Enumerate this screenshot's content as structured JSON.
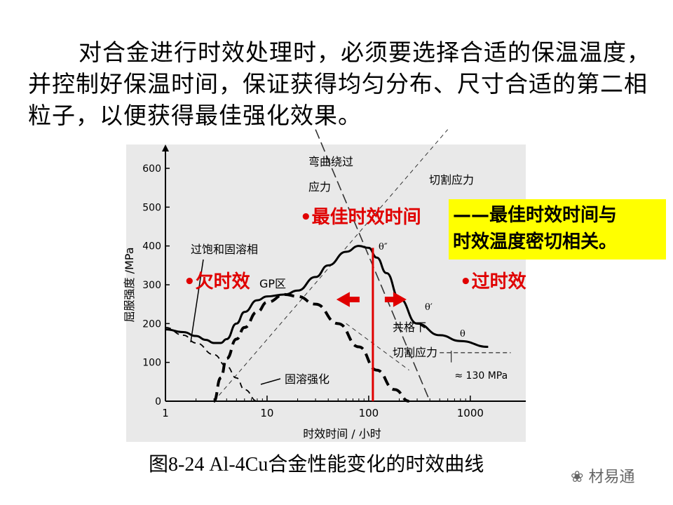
{
  "intro_text": "对合金进行时效处理时，必须要选择合适的保温温度，并控制好保温时间，保证获得均匀分布、尺寸合适的第二相粒子，以便获得最佳强化效果。",
  "caption": "图8-24  Al-4Cu合金性能变化的时效曲线",
  "watermark": "材易通",
  "note": {
    "line1": "——最佳时效时间与",
    "line2": "时效温度密切相关。",
    "bg": "#ffff00"
  },
  "highlights": {
    "best_time": "•最佳时效时间",
    "under_aging": "•欠时效",
    "over_aging": "•过时效",
    "gp_zone": "GP区",
    "color": "#e00000"
  },
  "chart_data": {
    "type": "line",
    "xscale": "log",
    "xlim": [
      1,
      3000
    ],
    "ylim": [
      0,
      600
    ],
    "xticks": [
      1,
      10,
      100,
      1000
    ],
    "xtick_labels": [
      "1",
      "10",
      "100",
      "1000"
    ],
    "yticks": [
      0,
      100,
      200,
      300,
      400,
      500,
      600
    ],
    "ytick_labels": [
      "0",
      "100",
      "200",
      "300",
      "400",
      "500",
      "600"
    ],
    "xlabel": "时效时间  /  小时",
    "ylabel": "屈服强度  /MPa",
    "series": [
      {
        "name": "",
        "style": "solid",
        "x": [
          1,
          1.5,
          2,
          2.5,
          3,
          3.5,
          4,
          5,
          6,
          8,
          10,
          15,
          20,
          30,
          40,
          60,
          80,
          100,
          120,
          150,
          200,
          300,
          500,
          800,
          1500
        ],
        "y": [
          185,
          178,
          168,
          158,
          150,
          150,
          160,
          200,
          230,
          260,
          270,
          275,
          285,
          320,
          350,
          385,
          400,
          395,
          370,
          330,
          265,
          200,
          170,
          155,
          140
        ]
      },
      {
        "name": "",
        "style": "dashed",
        "x": [
          3,
          3.5,
          4,
          5,
          6,
          8,
          10,
          15,
          20,
          30,
          50,
          80,
          120,
          180,
          250
        ],
        "y": [
          0,
          60,
          110,
          160,
          190,
          230,
          255,
          275,
          270,
          250,
          200,
          140,
          80,
          30,
          0
        ]
      },
      {
        "name": "",
        "style": "dashed",
        "x": [
          1,
          1.5,
          2,
          3,
          4,
          5,
          6,
          8
        ],
        "y": [
          190,
          170,
          150,
          120,
          90,
          60,
          30,
          0
        ]
      }
    ],
    "guide_lines": [
      {
        "label": "弯曲绕过应力",
        "x": [
          30,
          400
        ],
        "y": [
          700,
          0
        ]
      },
      {
        "label": "切割应力",
        "x": [
          3,
          600
        ],
        "y": [
          0,
          700
        ]
      },
      {
        "label": "共格下切割应力",
        "x": [
          60,
          250
        ],
        "y": [
          200,
          80
        ]
      }
    ],
    "optimum_x": 110,
    "reference": {
      "label": "≈ 130 MPa",
      "y": 130
    },
    "annotations": {
      "bending": [
        "弯曲绕过",
        "应力"
      ],
      "cutting": "切割应力",
      "supersat": "过饱和固溶相",
      "solid_solution": "固溶强化",
      "coherent": [
        "共格下",
        "切割应力"
      ],
      "theta_pp": "θ″",
      "theta_p": "θ′",
      "theta": "θ"
    }
  }
}
